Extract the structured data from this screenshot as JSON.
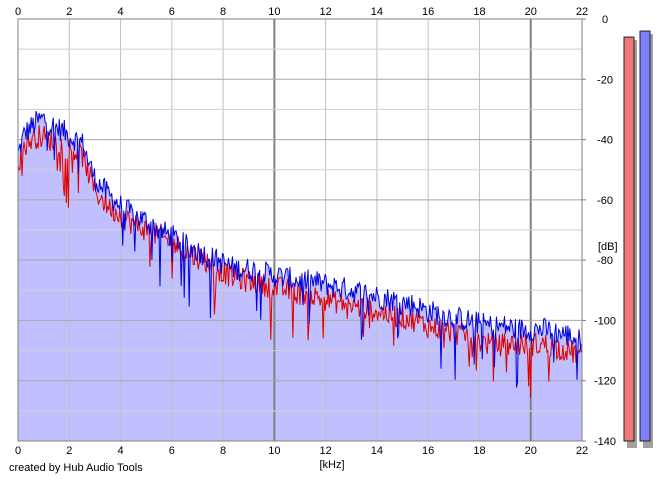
{
  "credit": "created by Hub Audio Tools",
  "chart_data": {
    "type": "area",
    "title": "",
    "xlabel": "[kHz]",
    "ylabel": "[dB]",
    "xlim": [
      0,
      22
    ],
    "ylim": [
      -140,
      0
    ],
    "x_ticks": [
      0,
      2,
      4,
      6,
      8,
      10,
      12,
      14,
      16,
      18,
      20,
      22
    ],
    "y_ticks": [
      0,
      -20,
      -40,
      -60,
      -80,
      -100,
      -120,
      -140
    ],
    "y_tick_labels": [
      "0",
      "-20",
      "-40",
      "-60",
      "-80",
      "-100",
      "-120",
      "-140"
    ],
    "grid": true,
    "colors": {
      "background_fill": "#c0c0ff",
      "left": "#e00000",
      "right": "#0000e0",
      "grid": "#c0c0c0",
      "grid_major": "#808080"
    },
    "series": [
      {
        "color": "#0000e0",
        "x": [
          0,
          0.25,
          0.5,
          0.75,
          1,
          1.25,
          1.5,
          1.75,
          2,
          2.25,
          2.5,
          2.7,
          3,
          3.5,
          4,
          4.5,
          5,
          5.5,
          6,
          6.5,
          7,
          7.5,
          8,
          8.5,
          9,
          9.5,
          10,
          10.5,
          11,
          11.5,
          12,
          12.5,
          13,
          13.5,
          14,
          14.5,
          15,
          15.5,
          16,
          16.5,
          17,
          17.5,
          18,
          18.5,
          19,
          19.5,
          20,
          20.5,
          21,
          21.5,
          22
        ],
        "values": [
          -45,
          -38,
          -36,
          -34,
          -33,
          -35,
          -36,
          -37,
          -39,
          -40,
          -41,
          -46,
          -53,
          -58,
          -62,
          -65,
          -67,
          -70,
          -72,
          -75,
          -77,
          -79,
          -81,
          -83,
          -83,
          -84,
          -85,
          -86,
          -87,
          -87,
          -88,
          -89,
          -90,
          -91,
          -92,
          -93,
          -94,
          -95,
          -97,
          -98,
          -99,
          -100,
          -101,
          -102,
          -102,
          -103,
          -103,
          -103,
          -104,
          -105,
          -107
        ]
      },
      {
        "color": "#e00000",
        "x": [
          0,
          0.25,
          0.5,
          0.75,
          1,
          1.25,
          1.5,
          1.75,
          2,
          2.25,
          2.5,
          2.7,
          3,
          3.5,
          4,
          4.5,
          5,
          5.5,
          6,
          6.5,
          7,
          7.5,
          8,
          8.5,
          9,
          9.5,
          10,
          10.5,
          11,
          11.5,
          12,
          12.5,
          13,
          13.5,
          14,
          14.5,
          15,
          15.5,
          16,
          16.5,
          17,
          17.5,
          18,
          18.5,
          19,
          19.5,
          20,
          20.5,
          21,
          21.5,
          22
        ],
        "values": [
          -48,
          -42,
          -40,
          -39,
          -39,
          -40,
          -41,
          -42,
          -43,
          -44,
          -45,
          -50,
          -57,
          -62,
          -65,
          -68,
          -70,
          -72,
          -74,
          -77,
          -79,
          -81,
          -84,
          -86,
          -87,
          -88,
          -89,
          -90,
          -91,
          -92,
          -93,
          -94,
          -95,
          -96,
          -97,
          -98,
          -99,
          -100,
          -102,
          -103,
          -104,
          -105,
          -107,
          -108,
          -108,
          -108,
          -108,
          -108,
          -109,
          -110,
          -112
        ]
      }
    ],
    "meters": [
      {
        "color": "#f07878",
        "peak_db": -6
      },
      {
        "color": "#8080ff",
        "peak_db": -4
      }
    ]
  }
}
